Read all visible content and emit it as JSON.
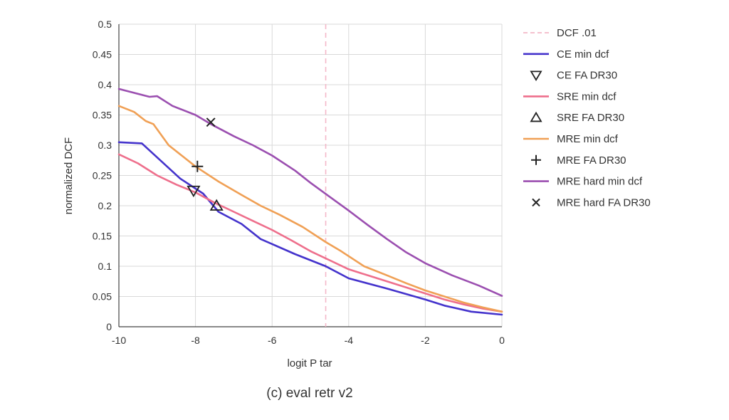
{
  "caption": "(c) eval retr v2",
  "chart_data": {
    "type": "line",
    "title": "",
    "xlabel": "logit P tar",
    "ylabel": "normalized DCF",
    "xlim": [
      -10,
      0
    ],
    "ylim": [
      0,
      0.5
    ],
    "x_ticks": [
      -10,
      -8,
      -6,
      -4,
      -2,
      0
    ],
    "x_tick_labels": [
      "-10",
      "-8",
      "-6",
      "-4",
      "-2",
      "0"
    ],
    "y_ticks": [
      0,
      0.05,
      0.1,
      0.15,
      0.2,
      0.25,
      0.3,
      0.35,
      0.4,
      0.45,
      0.5
    ],
    "y_tick_labels": [
      "0",
      "0.05",
      "0.1",
      "0.15",
      "0.2",
      "0.25",
      "0.3",
      "0.35",
      "0.4",
      "0.45",
      "0.5"
    ],
    "grid": true,
    "legend_position": "right",
    "vline": {
      "name": "DCF .01",
      "x": -4.6,
      "color": "#f4b8c8"
    },
    "series": [
      {
        "name": "CE min dcf",
        "color": "#4433cc",
        "x": [
          -10,
          -9.4,
          -8.4,
          -7.8,
          -7.4,
          -6.8,
          -6.3,
          -5.4,
          -4.6,
          -4,
          -3,
          -2,
          -1.5,
          -0.8,
          0
        ],
        "y": [
          0.305,
          0.303,
          0.245,
          0.22,
          0.19,
          0.17,
          0.145,
          0.12,
          0.1,
          0.08,
          0.063,
          0.045,
          0.035,
          0.025,
          0.02
        ]
      },
      {
        "name": "SRE min dcf",
        "color": "#ee6f8c",
        "x": [
          -10,
          -9.5,
          -9,
          -8.5,
          -8,
          -7.5,
          -7,
          -6.5,
          -6,
          -5.5,
          -5,
          -4.5,
          -4,
          -3.5,
          -3,
          -2.5,
          -2,
          -1.5,
          -1,
          -0.5,
          0
        ],
        "y": [
          0.285,
          0.27,
          0.25,
          0.235,
          0.222,
          0.205,
          0.19,
          0.175,
          0.16,
          0.143,
          0.125,
          0.11,
          0.095,
          0.085,
          0.075,
          0.065,
          0.055,
          0.045,
          0.037,
          0.03,
          0.025
        ]
      },
      {
        "name": "MRE min dcf",
        "color": "#f0a055",
        "x": [
          -10,
          -9.6,
          -9.3,
          -9.1,
          -8.7,
          -8,
          -7.4,
          -6.8,
          -6.3,
          -5.8,
          -5.2,
          -4.6,
          -4.2,
          -3.6,
          -3,
          -2.5,
          -2,
          -1.5,
          -1,
          -0.5,
          0
        ],
        "y": [
          0.365,
          0.355,
          0.34,
          0.335,
          0.3,
          0.265,
          0.24,
          0.218,
          0.2,
          0.185,
          0.165,
          0.14,
          0.125,
          0.1,
          0.085,
          0.072,
          0.06,
          0.05,
          0.04,
          0.032,
          0.025
        ]
      },
      {
        "name": "MRE hard min dcf",
        "color": "#9b4fb0",
        "x": [
          -10,
          -9.2,
          -9,
          -8.6,
          -8,
          -7.6,
          -7,
          -6.5,
          -6,
          -5.4,
          -5,
          -4.5,
          -4,
          -3.5,
          -3,
          -2.5,
          -2,
          -1.3,
          -0.6,
          0
        ],
        "y": [
          0.393,
          0.38,
          0.381,
          0.365,
          0.35,
          0.335,
          0.315,
          0.3,
          0.283,
          0.258,
          0.238,
          0.215,
          0.192,
          0.168,
          0.145,
          0.123,
          0.105,
          0.085,
          0.068,
          0.051
        ]
      }
    ],
    "markers": [
      {
        "name": "CE FA DR30",
        "symbol": "triangle-down",
        "x": -8.05,
        "y": 0.225,
        "color": "#222222"
      },
      {
        "name": "SRE FA DR30",
        "symbol": "triangle-up",
        "x": -7.45,
        "y": 0.2,
        "color": "#222222"
      },
      {
        "name": "MRE FA DR30",
        "symbol": "plus",
        "x": -7.95,
        "y": 0.265,
        "color": "#222222"
      },
      {
        "name": "MRE hard FA DR30",
        "symbol": "x",
        "x": -7.6,
        "y": 0.338,
        "color": "#222222"
      }
    ],
    "legend": [
      {
        "label": "DCF .01",
        "kind": "dash",
        "color": "#f4b8c8"
      },
      {
        "label": "CE min dcf",
        "kind": "line",
        "color": "#4433cc"
      },
      {
        "label": "CE FA DR30",
        "kind": "triangle-down",
        "color": "#222222"
      },
      {
        "label": "SRE min dcf",
        "kind": "line",
        "color": "#ee6f8c"
      },
      {
        "label": "SRE FA DR30",
        "kind": "triangle-up",
        "color": "#222222"
      },
      {
        "label": "MRE min dcf",
        "kind": "line",
        "color": "#f0a055"
      },
      {
        "label": "MRE FA DR30",
        "kind": "plus",
        "color": "#222222"
      },
      {
        "label": "MRE hard min dcf",
        "kind": "line",
        "color": "#9b4fb0"
      },
      {
        "label": "MRE hard FA DR30",
        "kind": "x",
        "color": "#222222"
      }
    ]
  }
}
